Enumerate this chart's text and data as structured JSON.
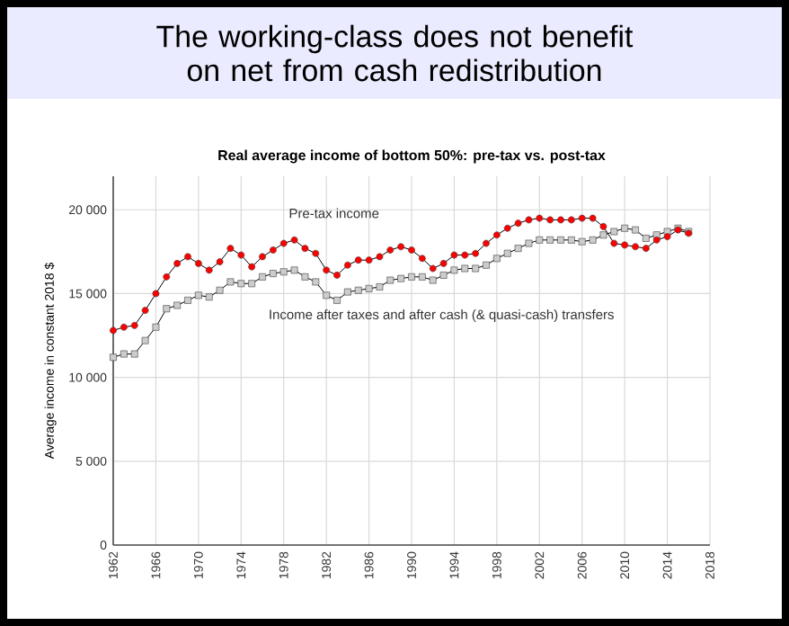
{
  "chart_data": {
    "type": "line",
    "title": "The working-class does not benefit on net from cash redistribution",
    "subtitle": "Real average income of bottom 50%: pre-tax vs. post-tax",
    "ylabel": "Average income in constant 2018 $",
    "x": [
      1962,
      1963,
      1964,
      1965,
      1966,
      1967,
      1968,
      1969,
      1970,
      1971,
      1972,
      1973,
      1974,
      1975,
      1976,
      1977,
      1978,
      1979,
      1980,
      1981,
      1982,
      1983,
      1984,
      1985,
      1986,
      1987,
      1988,
      1989,
      1990,
      1991,
      1992,
      1993,
      1994,
      1995,
      1996,
      1997,
      1998,
      1999,
      2000,
      2001,
      2002,
      2003,
      2004,
      2005,
      2006,
      2007,
      2008,
      2009,
      2010,
      2011,
      2012,
      2013,
      2014,
      2015,
      2016
    ],
    "series": [
      {
        "name": "Pre-tax income",
        "color": "#ff0000",
        "marker": "circle",
        "values": [
          12800,
          13000,
          13100,
          14000,
          15000,
          16000,
          16800,
          17200,
          16800,
          16400,
          16900,
          17700,
          17300,
          16600,
          17200,
          17600,
          18000,
          18200,
          17700,
          17400,
          16400,
          16100,
          16700,
          17000,
          17000,
          17200,
          17600,
          17800,
          17600,
          17100,
          16500,
          16800,
          17300,
          17300,
          17400,
          18000,
          18500,
          18900,
          19200,
          19400,
          19500,
          19400,
          19400,
          19400,
          19500,
          19500,
          19000,
          18000,
          17900,
          17800,
          17700,
          18200,
          18400,
          18800,
          18600
        ]
      },
      {
        "name": "Income after taxes and after cash (& quasi-cash) transfers",
        "color": "#cccccc",
        "marker": "square",
        "values": [
          11200,
          11400,
          11400,
          12200,
          13000,
          14100,
          14300,
          14600,
          14900,
          14800,
          15200,
          15700,
          15600,
          15600,
          16000,
          16200,
          16300,
          16400,
          16000,
          15700,
          14900,
          14600,
          15100,
          15200,
          15300,
          15400,
          15800,
          15900,
          16000,
          16000,
          15800,
          16100,
          16400,
          16500,
          16500,
          16700,
          17100,
          17400,
          17700,
          18000,
          18200,
          18200,
          18200,
          18200,
          18100,
          18200,
          18500,
          18700,
          18900,
          18800,
          18300,
          18500,
          18700,
          18900,
          18700
        ]
      }
    ],
    "xlim": [
      1962,
      2018
    ],
    "xticks": [
      1962,
      1966,
      1970,
      1974,
      1978,
      1982,
      1986,
      1990,
      1994,
      1998,
      2002,
      2006,
      2010,
      2014,
      2018
    ],
    "ylim": [
      0,
      22000
    ],
    "yticks": [
      {
        "value": 0,
        "label": "0"
      },
      {
        "value": 5000,
        "label": "5 000"
      },
      {
        "value": 10000,
        "label": "10 000"
      },
      {
        "value": 15000,
        "label": "15 000"
      },
      {
        "value": 20000,
        "label": "20 000"
      }
    ],
    "grid": true,
    "legend": false,
    "line_style": "solid"
  }
}
